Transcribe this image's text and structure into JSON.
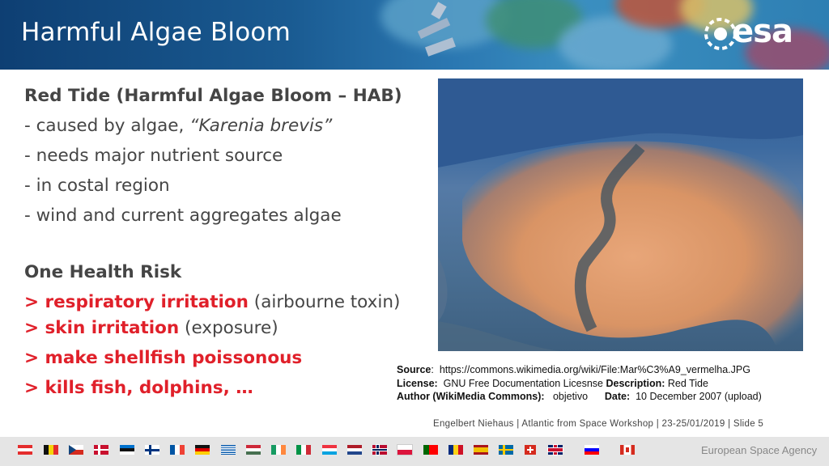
{
  "header": {
    "title": "Harmful Algae Bloom",
    "logo_text": "esa"
  },
  "main": {
    "section1_heading": "Red Tide (Harmful Algae Bloom – HAB)",
    "section1_items": [
      {
        "prefix": "- caused by algae, ",
        "italic": "“Karenia brevis”"
      },
      {
        "text": "- needs major nutrient source"
      },
      {
        "text": "- in costal region"
      },
      {
        "text": "- wind and current aggregates algae"
      }
    ],
    "section2_heading": "One Health Risk",
    "section2_items": [
      {
        "red": "> respiratory irritation",
        "gray": " (airbourne toxin)"
      },
      {
        "red": "> skin irritation",
        "gray": " (exposure)"
      },
      {
        "red": "> make shellfish poissonous",
        "gray": ""
      },
      {
        "red": "> kills fish, dolphins, …",
        "gray": ""
      }
    ]
  },
  "caption": {
    "source_label": "Source",
    "source_value": "https://commons.wikimedia.org/wiki/File:Mar%C3%A9_vermelha.JPG",
    "license_label": "License:",
    "license_value": "GNU Free Documentation Licesnse",
    "description_label": "Description:",
    "description_value": "Red Tide",
    "author_label": "Author (WikiMedia Commons):",
    "author_value": "objetivo",
    "date_label": "Date:",
    "date_value": "10 December 2007 (upload)"
  },
  "footer": {
    "text": "Engelbert Niehaus | Atlantic from Space Workshop | 23-25/01/2019 | Slide  5",
    "agency": "European Space Agency"
  },
  "colors": {
    "header_blue": "#1a5b92",
    "accent_red": "#e0202a",
    "text_gray": "#454545",
    "footer_bar": "#e5e5e5"
  }
}
